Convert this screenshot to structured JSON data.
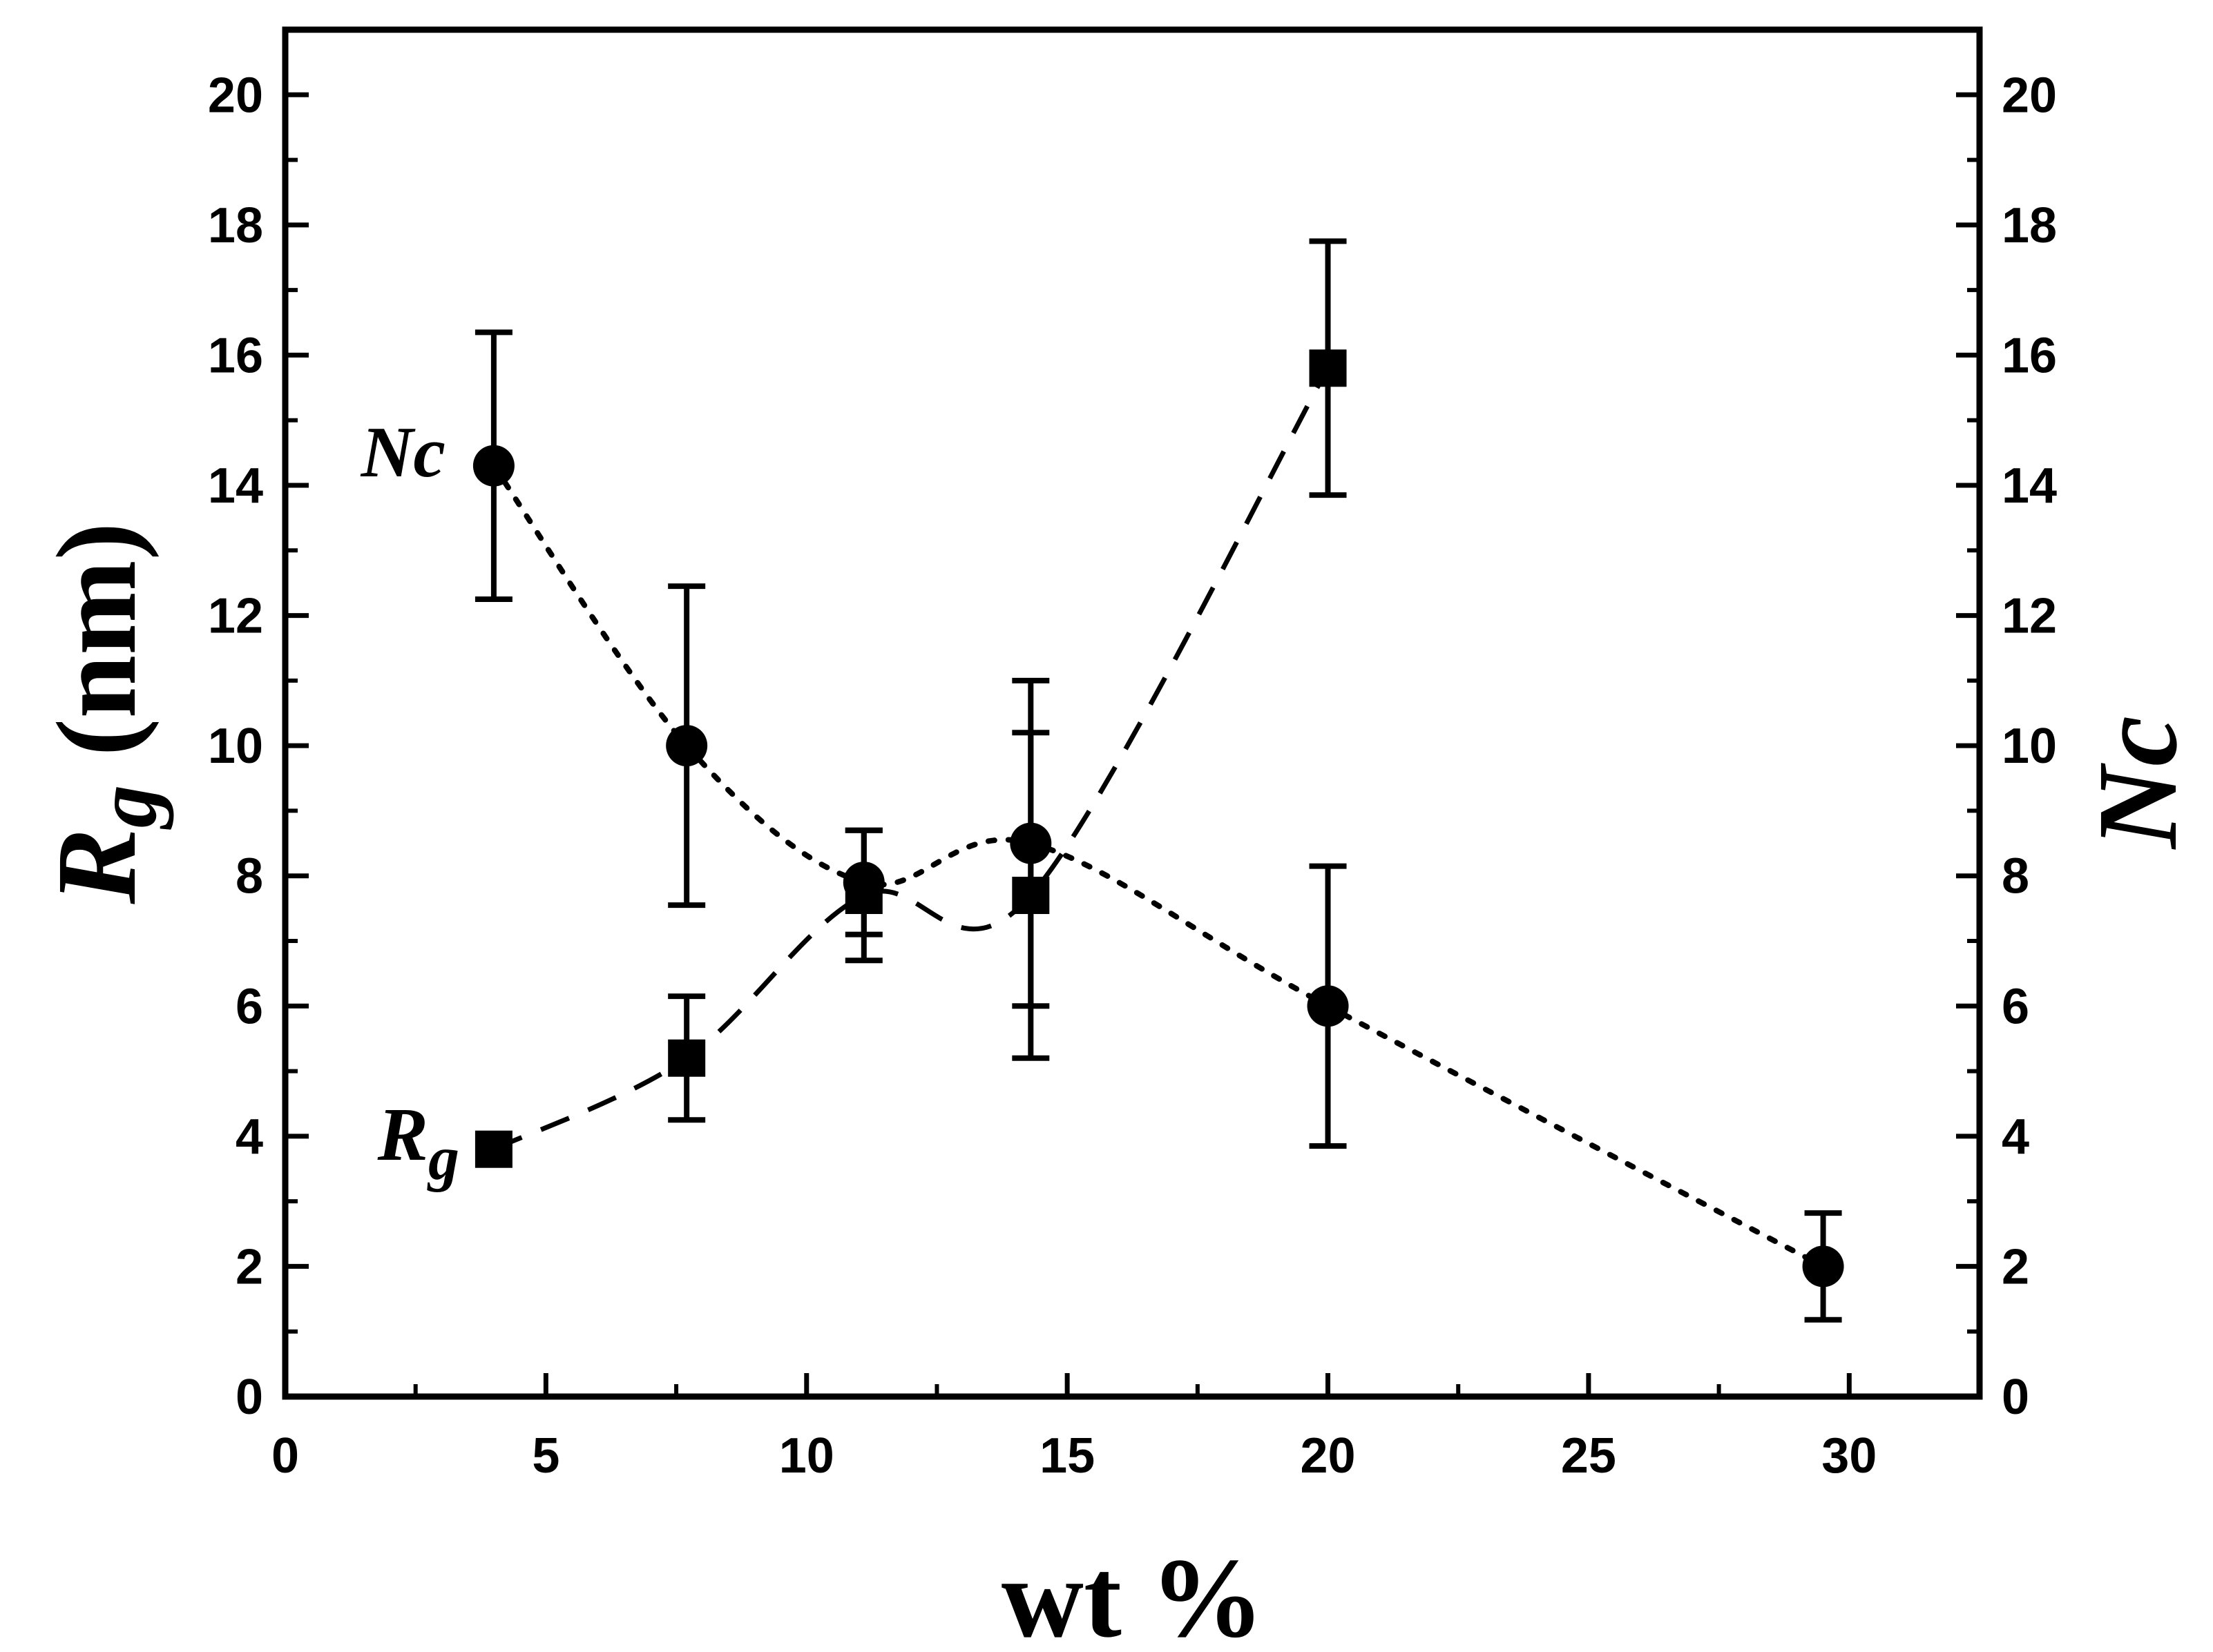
{
  "chart_data": {
    "type": "scatter",
    "title": "",
    "xlabel": "wt %",
    "ylabel_left": {
      "main": "R",
      "sub": "g",
      "unit": "(nm)"
    },
    "ylabel_right": "Nc",
    "xlim": [
      0,
      32.5
    ],
    "ylim_left": [
      0,
      21
    ],
    "ylim_right": [
      0,
      21
    ],
    "x_ticks": [
      0,
      5,
      10,
      15,
      20,
      25,
      30
    ],
    "x_tick_labels": [
      "0",
      "5",
      "10",
      "15",
      "20",
      "25",
      "30"
    ],
    "y_ticks": [
      0,
      2,
      4,
      6,
      8,
      10,
      12,
      14,
      16,
      18,
      20
    ],
    "y_tick_labels": [
      "0",
      "2",
      "4",
      "6",
      "8",
      "10",
      "12",
      "14",
      "16",
      "18",
      "20"
    ],
    "grid": false,
    "series": [
      {
        "name": "Rg",
        "label_main": "R",
        "label_sub": "g",
        "axis": "left",
        "marker": "square",
        "line": "dashed",
        "x": [
          4.0,
          7.7,
          11.1,
          14.3,
          20.0
        ],
        "y": [
          3.8,
          5.2,
          7.7,
          7.7,
          15.8
        ],
        "err": [
          0.0,
          0.95,
          1.0,
          2.5,
          1.95
        ]
      },
      {
        "name": "Nc",
        "axis": "right",
        "marker": "circle",
        "line": "dotted",
        "x": [
          4.0,
          7.7,
          11.1,
          14.3,
          20.0,
          29.5
        ],
        "y": [
          14.3,
          10.0,
          7.9,
          8.5,
          6.0,
          2.0
        ],
        "err": [
          2.05,
          2.45,
          0.8,
          2.5,
          2.15,
          0.82
        ]
      }
    ],
    "colors": {
      "ink": "#000000",
      "background": "#ffffff"
    }
  }
}
